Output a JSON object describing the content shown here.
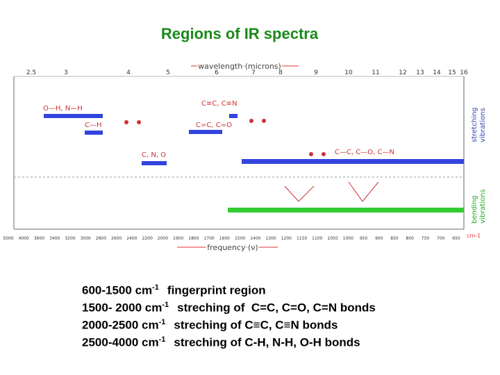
{
  "header": {
    "title": "Regions of IR spectra"
  },
  "figure": {
    "wavelength_label": "wavelength (microns)",
    "wavelength_ticks": [
      "2.5",
      "3",
      "4",
      "5",
      "6",
      "7",
      "8",
      "9",
      "10",
      "11",
      "12",
      "13",
      "14",
      "15",
      "16"
    ],
    "frequency_label": "frequency (ν)",
    "frequency_unit": "cm-1",
    "frequency_ticks": [
      "5000",
      "4000",
      "3600",
      "3400",
      "3200",
      "3000",
      "2800",
      "2600",
      "2400",
      "2200",
      "2000",
      "1900",
      "1800",
      "1700",
      "1600",
      "1500",
      "1400",
      "1300",
      "1200",
      "1150",
      "1100",
      "1050",
      "1000",
      "950",
      "900",
      "850",
      "800",
      "750",
      "700",
      "650"
    ],
    "stretching_label": [
      "stretching",
      "vibrations"
    ],
    "bending_label": [
      "bending",
      "vibrations"
    ],
    "bonds": {
      "oh_nh": "O—H, N—H",
      "ch": "C—H",
      "triple": "C≡C, C≡N",
      "double": "C=C, C=O",
      "cno": "C, N, O",
      "single": "C—C, C—O, C—N"
    }
  },
  "lines": [
    {
      "range": "600-1500 cm",
      "sup": "-1",
      "text": "fingerprint region"
    },
    {
      "range": "1500- 2000 cm",
      "sup": "-1",
      "text": "streching of  C=C, C=O, C=N bonds"
    },
    {
      "range": "2000-2500 cm",
      "sup": "-1",
      "text": "streching of C≡C, C≡N bonds"
    },
    {
      "range": "2500-4000 cm",
      "sup": "-1",
      "text": "streching of C-H, N-H, O-H bonds"
    }
  ]
}
